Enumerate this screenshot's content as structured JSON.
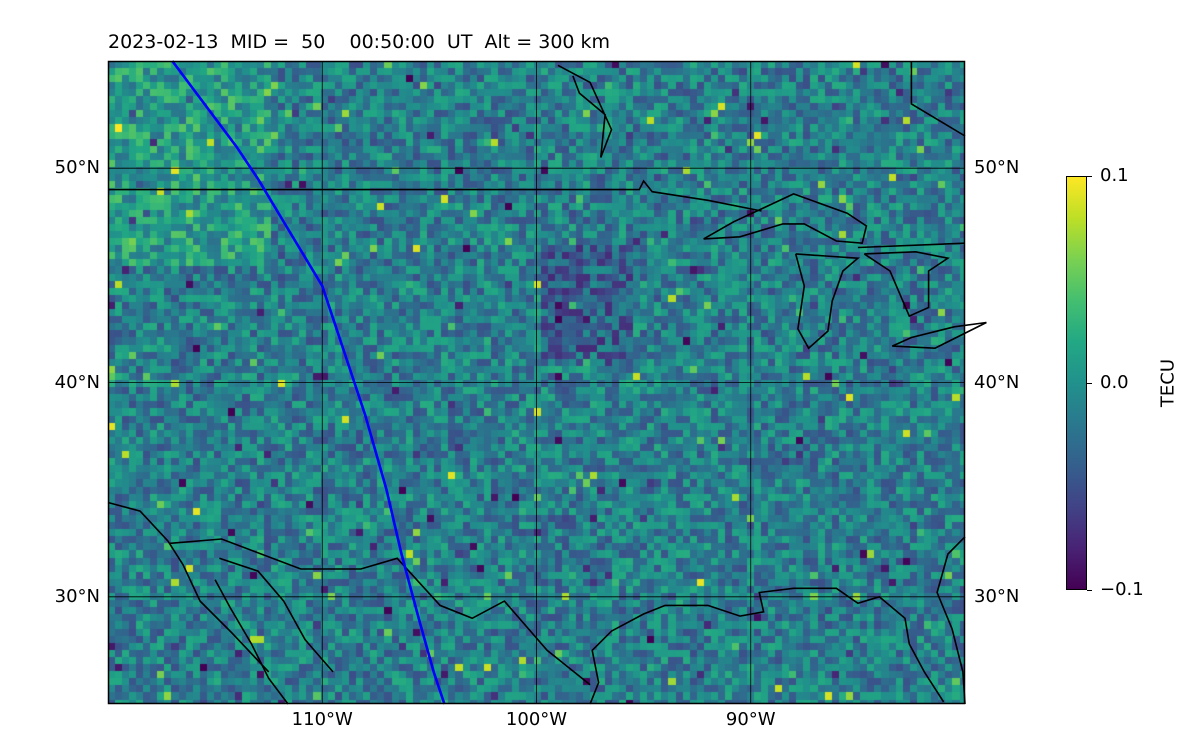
{
  "title": "2023-02-13  MID =  50    00:50:00  UT  Alt = 300 km",
  "map": {
    "lon_range": [
      -120,
      -80
    ],
    "lat_range": [
      25,
      55
    ],
    "lon_ticks": [
      {
        "value": -110,
        "label": "110°W"
      },
      {
        "value": -100,
        "label": "100°W"
      },
      {
        "value": -90,
        "label": "90°W"
      }
    ],
    "lat_ticks": [
      {
        "value": 30,
        "label": "30°N"
      },
      {
        "value": 40,
        "label": "40°N"
      },
      {
        "value": 50,
        "label": "50°N"
      }
    ],
    "gridlines": true,
    "colormap": "viridis",
    "field": "differential TEC perturbation",
    "satellite_track": {
      "color": "#0000ff",
      "points": [
        [
          -117,
          55
        ],
        [
          -115.5,
          53
        ],
        [
          -114,
          51
        ],
        [
          -113,
          49.5
        ],
        [
          -111.5,
          47
        ],
        [
          -110,
          44.5
        ],
        [
          -109,
          41.5
        ],
        [
          -108,
          38.5
        ],
        [
          -107,
          35
        ],
        [
          -106.3,
          32
        ],
        [
          -105.5,
          29
        ],
        [
          -104.8,
          26.5
        ],
        [
          -104.3,
          25
        ]
      ]
    },
    "coastline_color": "#000000"
  },
  "colorbar": {
    "label": "TECU",
    "min": -0.1,
    "max": 0.1,
    "ticks": [
      {
        "value": 0.1,
        "label": "0.1"
      },
      {
        "value": 0.0,
        "label": "0.0"
      },
      {
        "value": -0.1,
        "label": "−0.1"
      }
    ]
  }
}
